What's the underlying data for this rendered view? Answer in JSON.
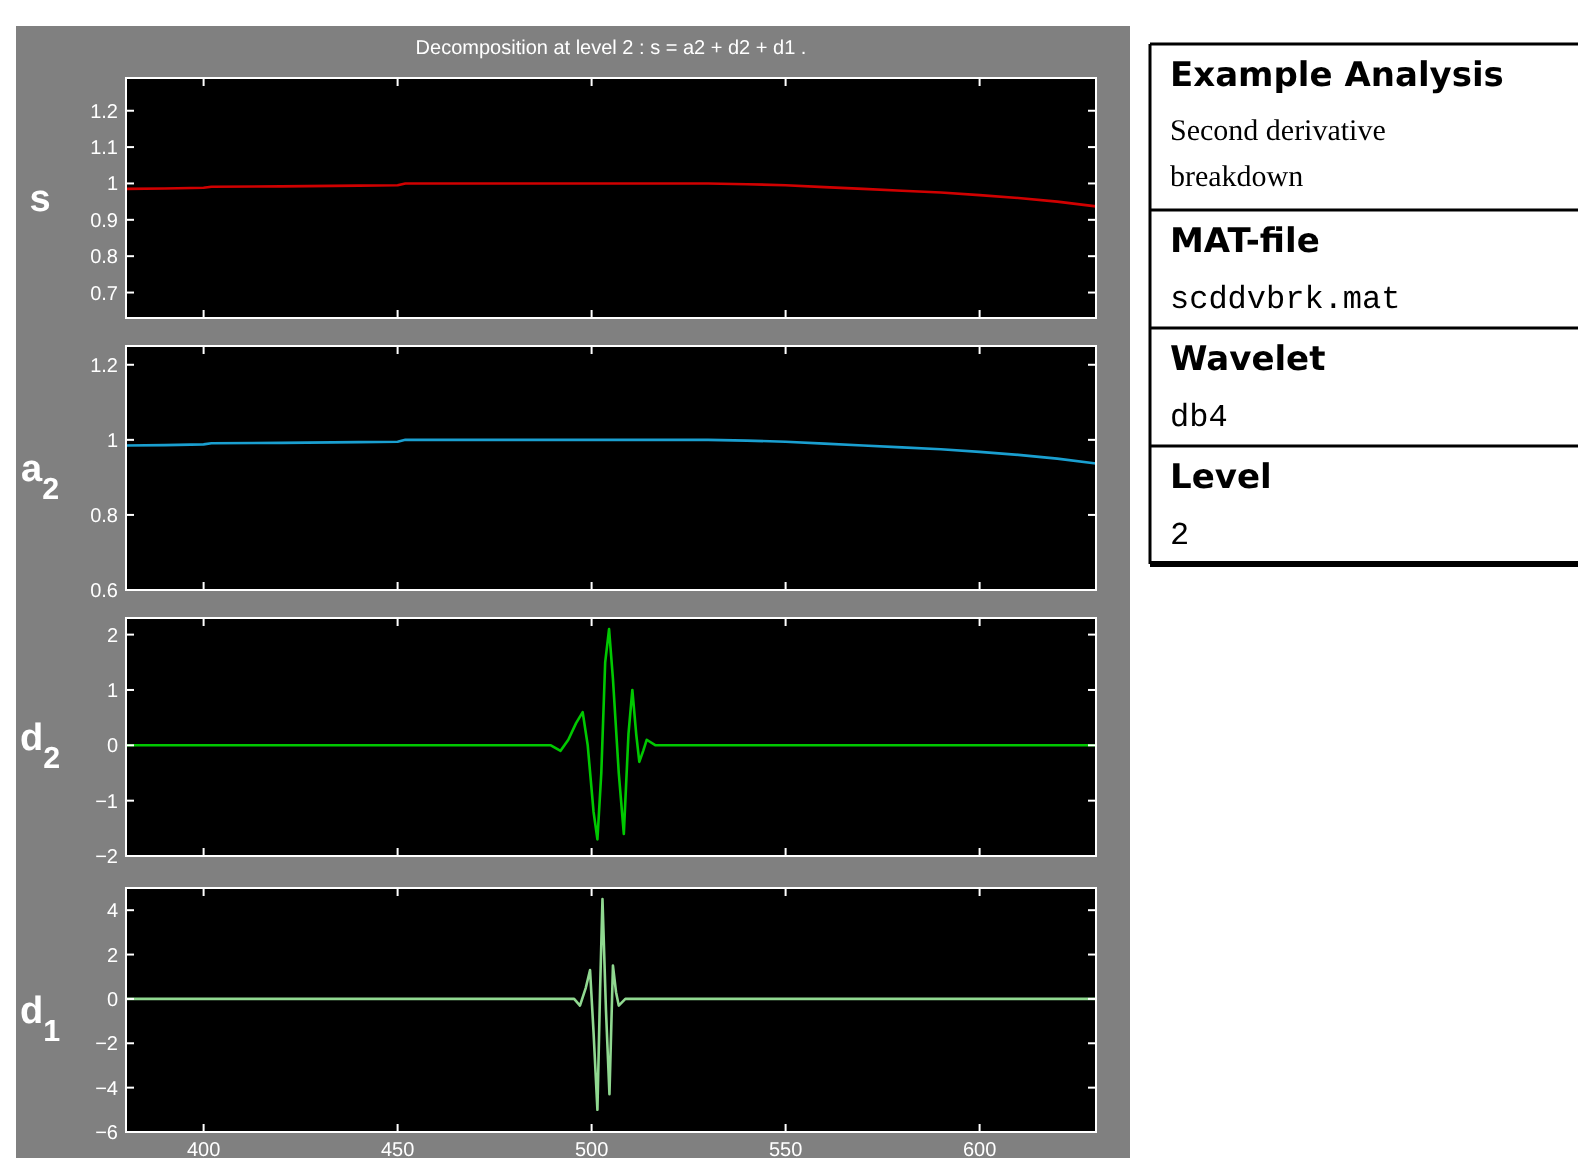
{
  "chart_data": [
    {
      "type": "line",
      "title": "Decomposition at level 2 : s = a2 + d2 + d1 .",
      "ylabel": "s",
      "xlim": [
        380,
        630
      ],
      "xticks": [
        400,
        450,
        500,
        550,
        600
      ],
      "ylim": [
        0.63,
        1.29
      ],
      "yticks": [
        0.7,
        0.8,
        0.9,
        1,
        1.1,
        1.2
      ],
      "tick_labels": "y",
      "grid": false,
      "series": [
        {
          "color": "#d00000",
          "x": [
            380,
            390,
            400,
            402,
            420,
            440,
            450,
            452,
            480,
            500,
            520,
            530,
            540,
            550,
            560,
            570,
            580,
            590,
            600,
            610,
            620,
            630
          ],
          "values": [
            0.985,
            0.986,
            0.988,
            0.991,
            0.992,
            0.994,
            0.995,
            1.0,
            1.0,
            1.0,
            1.0,
            1.0,
            0.998,
            0.995,
            0.99,
            0.985,
            0.98,
            0.975,
            0.968,
            0.96,
            0.95,
            0.937
          ]
        }
      ]
    },
    {
      "type": "line",
      "ylabel": "a$_{2}$",
      "xlim": [
        380,
        630
      ],
      "xticks": [
        400,
        450,
        500,
        550,
        600
      ],
      "ylim": [
        0.6,
        1.25
      ],
      "yticks": [
        0.6,
        0.8,
        1,
        1.2
      ],
      "tick_labels": "y",
      "grid": false,
      "series": [
        {
          "color": "#1a9fd0",
          "x": [
            380,
            390,
            400,
            402,
            420,
            440,
            450,
            452,
            480,
            500,
            520,
            530,
            540,
            550,
            560,
            570,
            580,
            590,
            600,
            610,
            620,
            630
          ],
          "values": [
            0.985,
            0.986,
            0.988,
            0.991,
            0.992,
            0.994,
            0.995,
            1.0,
            1.0,
            1.0,
            1.0,
            1.0,
            0.998,
            0.995,
            0.99,
            0.985,
            0.98,
            0.975,
            0.968,
            0.96,
            0.95,
            0.937
          ]
        }
      ]
    },
    {
      "type": "line",
      "ylabel": "d$_{2}$",
      "xlim": [
        380,
        630
      ],
      "xticks": [
        400,
        450,
        500,
        550,
        600
      ],
      "ylim": [
        -2,
        2.3
      ],
      "yticks": [
        -2,
        -1,
        0,
        1,
        2
      ],
      "tick_labels": "y",
      "grid": false,
      "series": [
        {
          "color": "#00c800",
          "x": [
            380,
            489.5,
            492,
            494,
            496,
            497.7,
            499,
            500.5,
            501.5,
            502.5,
            503.5,
            504.5,
            505.5,
            507,
            508.3,
            509.5,
            510.5,
            511.5,
            512.3,
            513.3,
            514.2,
            516.5,
            630
          ],
          "values": [
            0,
            0,
            -0.1,
            0.1,
            0.4,
            0.6,
            0,
            -1.2,
            -1.7,
            -0.5,
            1.5,
            2.1,
            1.2,
            -0.5,
            -1.6,
            0.2,
            1.0,
            0.2,
            -0.3,
            -0.1,
            0.1,
            0,
            0
          ]
        }
      ]
    },
    {
      "type": "line",
      "ylabel": "d$_{1}$",
      "xlim": [
        380,
        630
      ],
      "xticks": [
        400,
        450,
        500,
        550,
        600
      ],
      "ylim": [
        -6,
        5
      ],
      "yticks": [
        -6,
        -4,
        -2,
        0,
        2,
        4
      ],
      "grid": false,
      "series": [
        {
          "color": "#90d890",
          "x": [
            380,
            495.5,
            497,
            498.5,
            499.6,
            500.5,
            501.5,
            502.2,
            502.8,
            503.7,
            504.6,
            505.5,
            506.3,
            507,
            508.7,
            630
          ],
          "values": [
            0,
            0,
            -0.3,
            0.5,
            1.3,
            -1.5,
            -5,
            0.5,
            4.5,
            -0.5,
            -4.3,
            1.5,
            0.3,
            -0.3,
            0,
            0
          ]
        }
      ]
    },
    {
      "type": "other",
      "title": "Example Analysis",
      "annotations": [
        "Second derivative breakdown",
        "MAT-file",
        "scddvbrk.mat",
        "Wavelet",
        "db4",
        "Level",
        "2"
      ]
    }
  ]
}
